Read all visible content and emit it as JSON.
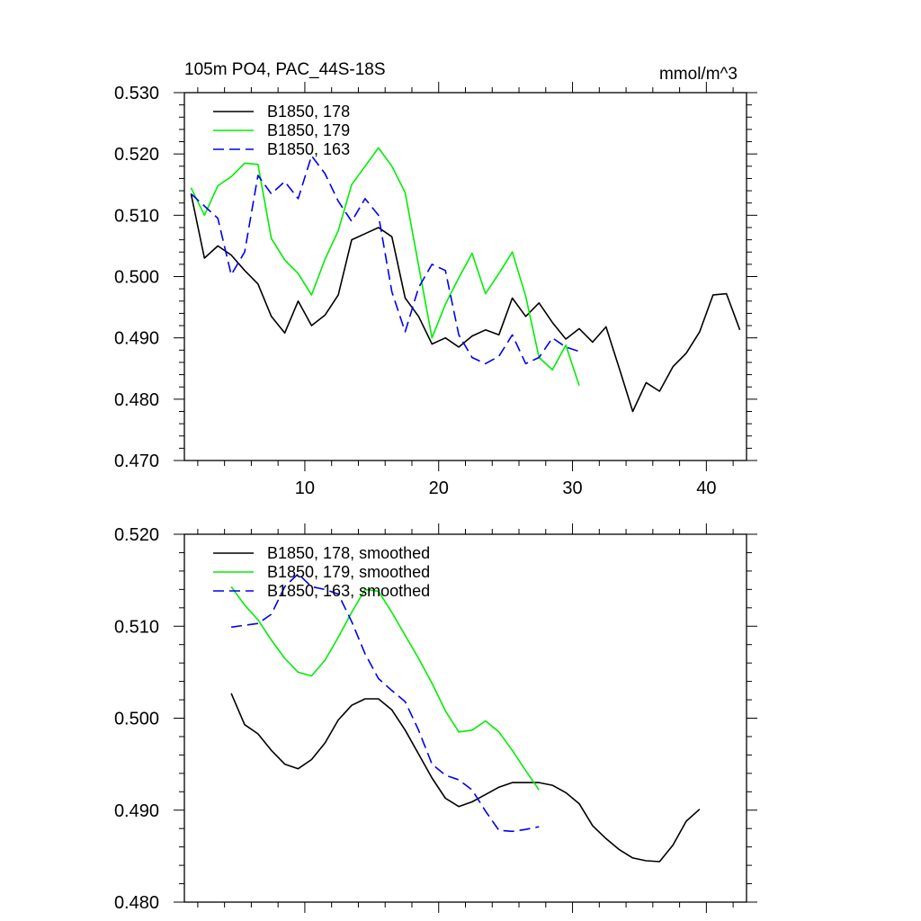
{
  "chart_data": [
    {
      "type": "line",
      "title": "105m PO4, PAC_44S-18S",
      "units": "mmol/m^3",
      "xlim": [
        1,
        43
      ],
      "ylim": [
        0.47,
        0.53
      ],
      "xticks": [
        10,
        20,
        30,
        40
      ],
      "yticks": [
        0.47,
        0.48,
        0.49,
        0.5,
        0.51,
        0.52,
        0.53
      ],
      "ytick_labels": [
        "0.470",
        "0.480",
        "0.490",
        "0.500",
        "0.510",
        "0.520",
        "0.530"
      ],
      "legend_position": "top-left",
      "series": [
        {
          "name": "B1850, 178",
          "color": "#000000",
          "dash": "solid",
          "x_start": 1.5,
          "values": [
            0.5135,
            0.503,
            0.505,
            0.5035,
            0.501,
            0.4988,
            0.4935,
            0.4908,
            0.496,
            0.492,
            0.4937,
            0.497,
            0.506,
            0.507,
            0.508,
            0.5065,
            0.4965,
            0.4935,
            0.489,
            0.49,
            0.4885,
            0.4903,
            0.4913,
            0.4905,
            0.4965,
            0.4935,
            0.4957,
            0.4925,
            0.4898,
            0.4915,
            0.4893,
            0.4918,
            0.485,
            0.478,
            0.4827,
            0.4813,
            0.4853,
            0.4875,
            0.491,
            0.497,
            0.4972,
            0.4913
          ]
        },
        {
          "name": "B1850, 179",
          "color": "#00ee00",
          "dash": "solid",
          "x_start": 1.5,
          "values": [
            0.5145,
            0.51,
            0.5148,
            0.5163,
            0.5185,
            0.5183,
            0.5062,
            0.5027,
            0.5005,
            0.497,
            0.5028,
            0.5075,
            0.515,
            0.518,
            0.521,
            0.518,
            0.5137,
            0.5018,
            0.49,
            0.4955,
            0.4998,
            0.5038,
            0.4972,
            0.5005,
            0.504,
            0.4968,
            0.4868,
            0.4848,
            0.4888,
            0.4822
          ]
        },
        {
          "name": "B1850, 163",
          "color": "#0000ee",
          "dash": "dashed",
          "x_start": 1.5,
          "values": [
            0.5135,
            0.5115,
            0.5095,
            0.5003,
            0.504,
            0.5165,
            0.5135,
            0.5155,
            0.5127,
            0.5197,
            0.5168,
            0.5123,
            0.509,
            0.5127,
            0.51,
            0.4975,
            0.491,
            0.4982,
            0.502,
            0.501,
            0.4905,
            0.4868,
            0.4858,
            0.487,
            0.4905,
            0.4858,
            0.4868,
            0.49,
            0.4885,
            0.4878
          ]
        }
      ]
    },
    {
      "type": "line",
      "xlim": [
        1,
        43
      ],
      "ylim": [
        0.48,
        0.52
      ],
      "xticks": [
        10,
        20,
        30,
        40
      ],
      "yticks": [
        0.48,
        0.49,
        0.5,
        0.51,
        0.52
      ],
      "ytick_labels": [
        "0.480",
        "0.490",
        "0.500",
        "0.510",
        "0.520"
      ],
      "legend_position": "top-left",
      "series": [
        {
          "name": "B1850, 178, smoothed",
          "color": "#000000",
          "dash": "solid",
          "x_start": 4.5,
          "values": [
            0.5027,
            0.4993,
            0.4983,
            0.4965,
            0.495,
            0.4945,
            0.4955,
            0.4973,
            0.4998,
            0.5014,
            0.5021,
            0.5021,
            0.5009,
            0.4987,
            0.4961,
            0.4935,
            0.4913,
            0.4904,
            0.4909,
            0.4917,
            0.4925,
            0.493,
            0.493,
            0.493,
            0.4927,
            0.4919,
            0.4907,
            0.4883,
            0.4869,
            0.4857,
            0.4848,
            0.4845,
            0.4844,
            0.4862,
            0.4888,
            0.4901
          ]
        },
        {
          "name": "B1850, 179, smoothed",
          "color": "#00ee00",
          "dash": "solid",
          "x_start": 4.5,
          "values": [
            0.5143,
            0.5123,
            0.5107,
            0.5085,
            0.5065,
            0.505,
            0.5046,
            0.5063,
            0.5088,
            0.5115,
            0.514,
            0.5138,
            0.5115,
            0.509,
            0.5065,
            0.5038,
            0.5008,
            0.4985,
            0.4987,
            0.4997,
            0.4985,
            0.4965,
            0.4943,
            0.4922
          ]
        },
        {
          "name": "B1850, 163, smoothed",
          "color": "#0000ee",
          "dash": "dashed",
          "x_start": 4.5,
          "values": [
            0.5099,
            0.5101,
            0.5103,
            0.5113,
            0.5143,
            0.5157,
            0.5143,
            0.514,
            0.5135,
            0.5105,
            0.507,
            0.5043,
            0.503,
            0.5018,
            0.4987,
            0.495,
            0.4938,
            0.4933,
            0.4922,
            0.4899,
            0.4878,
            0.4877,
            0.4879,
            0.4882
          ]
        }
      ]
    }
  ]
}
